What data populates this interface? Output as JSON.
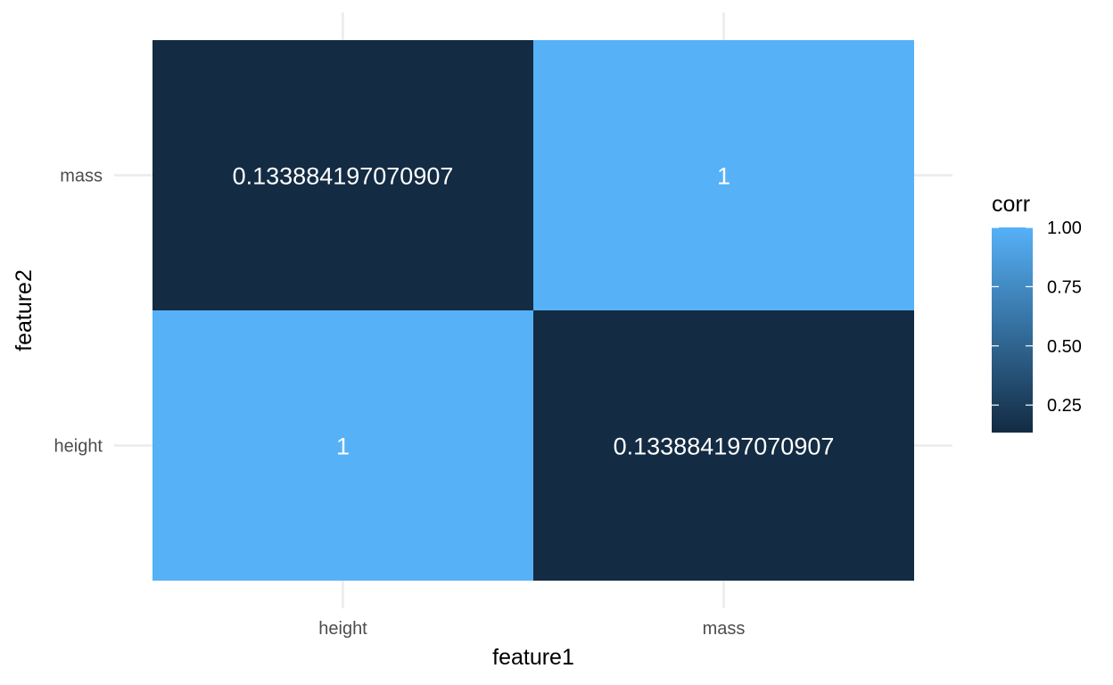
{
  "chart_data": {
    "type": "heatmap",
    "xlabel": "feature1",
    "ylabel": "feature2",
    "x_categories": [
      "height",
      "mass"
    ],
    "y_categories": [
      "height",
      "mass"
    ],
    "cells": [
      {
        "x": "height",
        "y": "mass",
        "value": 0.133884197070907,
        "label": "0.133884197070907"
      },
      {
        "x": "mass",
        "y": "mass",
        "value": 1,
        "label": "1"
      },
      {
        "x": "height",
        "y": "height",
        "value": 1,
        "label": "1"
      },
      {
        "x": "mass",
        "y": "height",
        "value": 0.133884197070907,
        "label": "0.133884197070907"
      }
    ],
    "legend": {
      "title": "corr",
      "position": "right",
      "range": [
        0.133884197070907,
        1
      ],
      "ticks": [
        {
          "value": 1.0,
          "label": "1.00"
        },
        {
          "value": 0.75,
          "label": "0.75"
        },
        {
          "value": 0.5,
          "label": "0.50"
        },
        {
          "value": 0.25,
          "label": "0.25"
        }
      ]
    },
    "colors": {
      "low": "#132b43",
      "high": "#56b1f7",
      "grid": "#ebebeb",
      "text": "#ffffff"
    },
    "grid": true
  }
}
